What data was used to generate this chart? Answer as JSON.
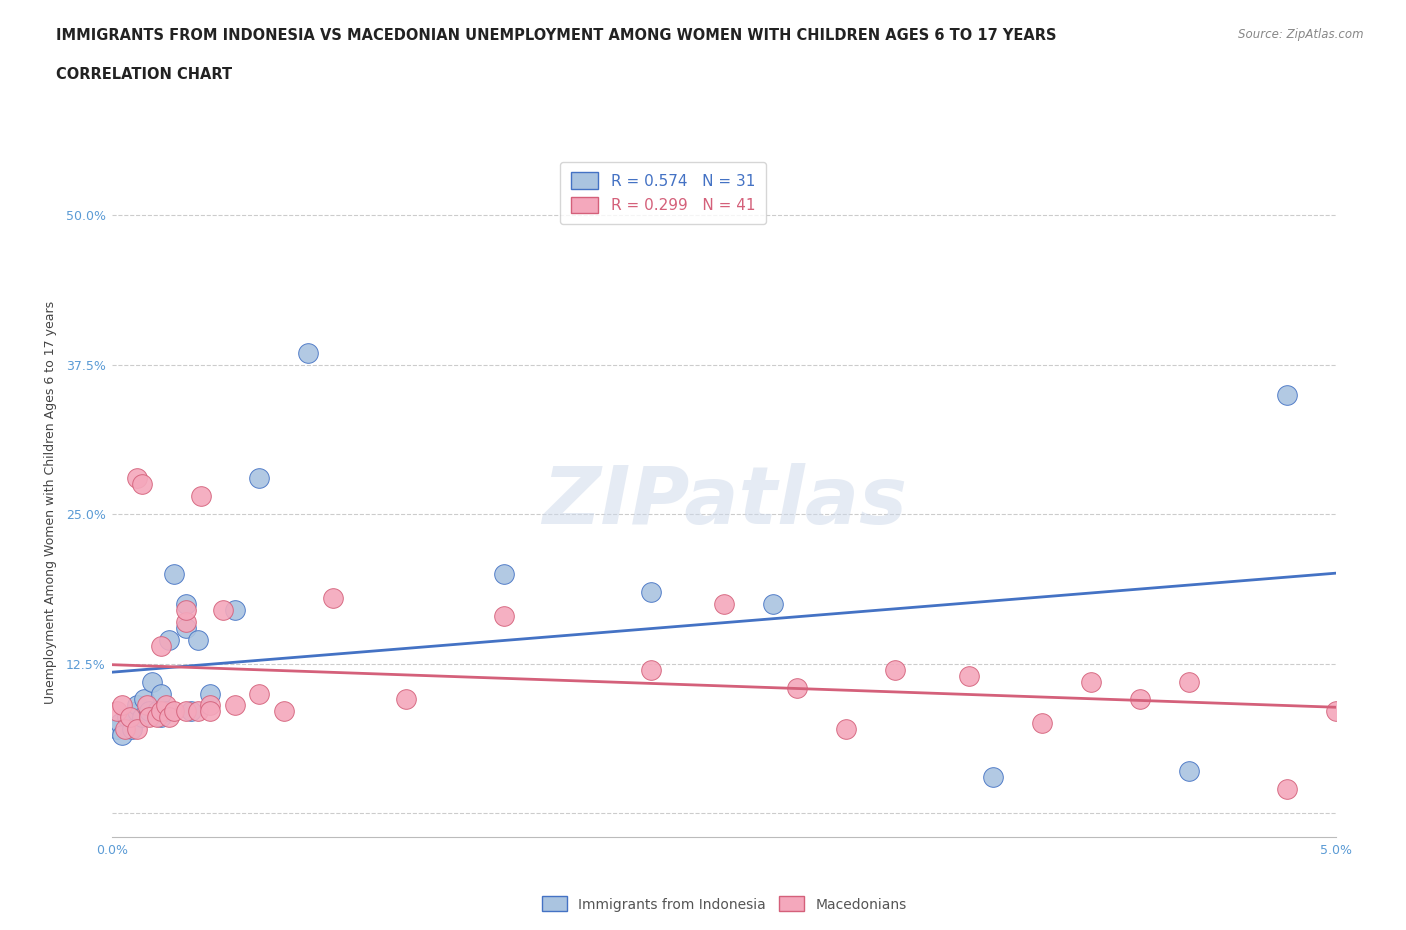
{
  "title_line1": "IMMIGRANTS FROM INDONESIA VS MACEDONIAN UNEMPLOYMENT AMONG WOMEN WITH CHILDREN AGES 6 TO 17 YEARS",
  "title_line2": "CORRELATION CHART",
  "source_text": "Source: ZipAtlas.com",
  "ylabel": "Unemployment Among Women with Children Ages 6 to 17 years",
  "xlim": [
    0.0,
    0.05
  ],
  "ylim": [
    -0.02,
    0.54
  ],
  "xticks": [
    0.0,
    0.01,
    0.02,
    0.03,
    0.04,
    0.05
  ],
  "xtick_labels": [
    "0.0%",
    "",
    "",
    "",
    "",
    "5.0%"
  ],
  "yticks": [
    0.0,
    0.125,
    0.25,
    0.375,
    0.5
  ],
  "ytick_labels": [
    "",
    "12.5%",
    "25.0%",
    "37.5%",
    "50.0%"
  ],
  "blue_color": "#aac4e0",
  "blue_line_color": "#4472c4",
  "pink_color": "#f4a8bc",
  "pink_line_color": "#d4607a",
  "legend_R1": "R = 0.574",
  "legend_N1": "N = 31",
  "legend_R2": "R = 0.299",
  "legend_N2": "N = 41",
  "blue_scatter_x": [
    0.0002,
    0.0003,
    0.0004,
    0.0006,
    0.0008,
    0.001,
    0.001,
    0.0012,
    0.0013,
    0.0015,
    0.0016,
    0.0018,
    0.002,
    0.002,
    0.0022,
    0.0023,
    0.0025,
    0.003,
    0.003,
    0.0032,
    0.0035,
    0.004,
    0.005,
    0.006,
    0.008,
    0.016,
    0.022,
    0.027,
    0.036,
    0.044,
    0.048
  ],
  "blue_scatter_y": [
    0.07,
    0.075,
    0.065,
    0.08,
    0.07,
    0.085,
    0.09,
    0.08,
    0.095,
    0.085,
    0.11,
    0.085,
    0.08,
    0.1,
    0.085,
    0.145,
    0.2,
    0.155,
    0.175,
    0.085,
    0.145,
    0.1,
    0.17,
    0.28,
    0.385,
    0.2,
    0.185,
    0.175,
    0.03,
    0.035,
    0.35
  ],
  "pink_scatter_x": [
    0.0002,
    0.0004,
    0.0005,
    0.0007,
    0.001,
    0.001,
    0.0012,
    0.0014,
    0.0015,
    0.0018,
    0.002,
    0.002,
    0.0022,
    0.0023,
    0.0025,
    0.003,
    0.003,
    0.003,
    0.0035,
    0.0036,
    0.004,
    0.004,
    0.0045,
    0.005,
    0.006,
    0.007,
    0.009,
    0.012,
    0.016,
    0.022,
    0.025,
    0.028,
    0.03,
    0.032,
    0.035,
    0.038,
    0.04,
    0.042,
    0.044,
    0.048,
    0.05
  ],
  "pink_scatter_y": [
    0.085,
    0.09,
    0.07,
    0.08,
    0.07,
    0.28,
    0.275,
    0.09,
    0.08,
    0.08,
    0.085,
    0.14,
    0.09,
    0.08,
    0.085,
    0.16,
    0.17,
    0.085,
    0.085,
    0.265,
    0.09,
    0.085,
    0.17,
    0.09,
    0.1,
    0.085,
    0.18,
    0.095,
    0.165,
    0.12,
    0.175,
    0.105,
    0.07,
    0.12,
    0.115,
    0.075,
    0.11,
    0.095,
    0.11,
    0.02,
    0.085
  ],
  "watermark_text": "ZIPatlas",
  "title_fontsize": 11,
  "label_fontsize": 9,
  "tick_fontsize": 9
}
